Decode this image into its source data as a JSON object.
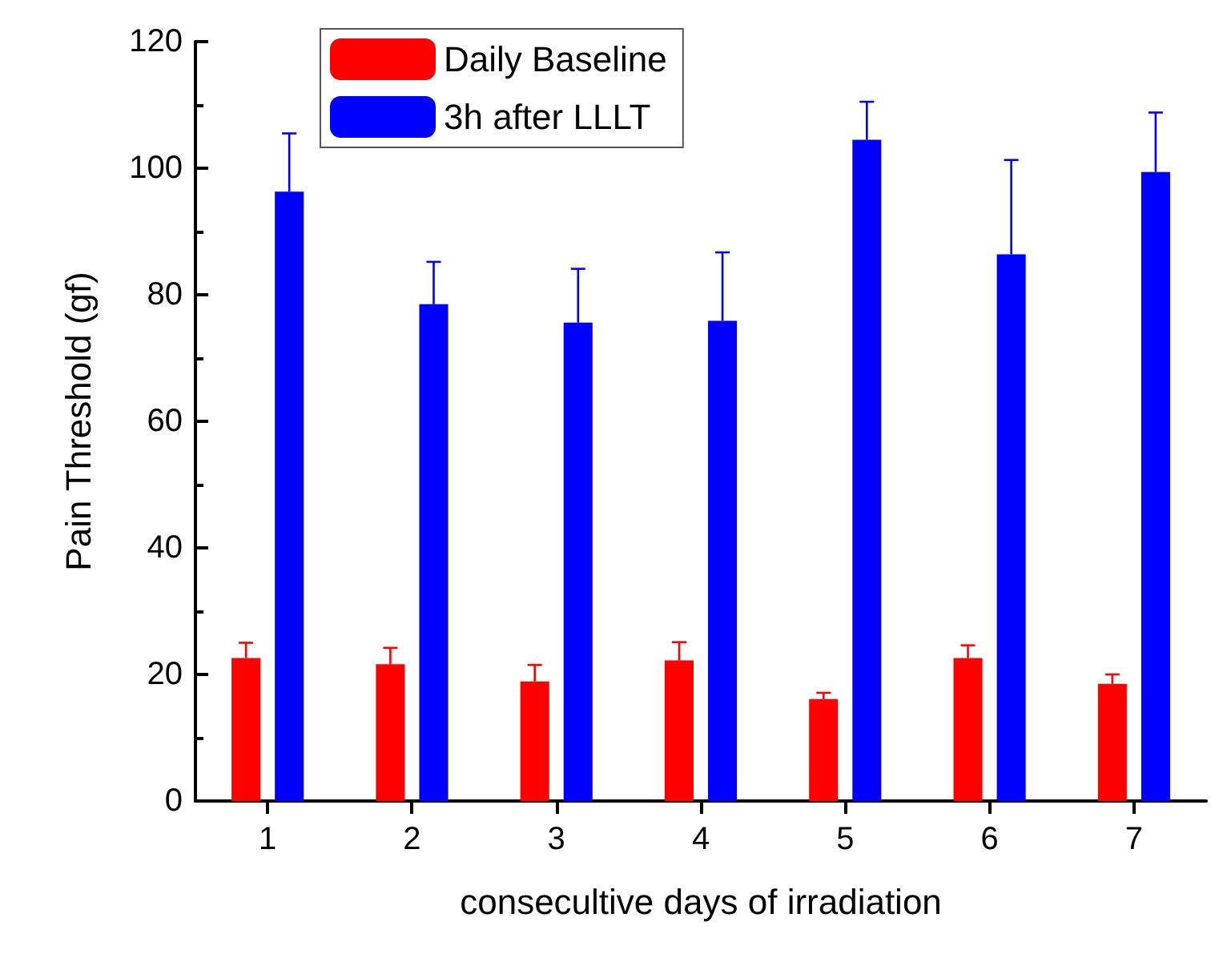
{
  "chart_data": {
    "type": "bar",
    "xlabel": "consecultive days of irradiation",
    "ylabel": "Pain Threshold (gf)",
    "categories": [
      "1",
      "2",
      "3",
      "4",
      "5",
      "6",
      "7"
    ],
    "series": [
      {
        "name": "Daily Baseline",
        "color": "#ff0000",
        "values": [
          22.6,
          21.6,
          18.9,
          22.2,
          16.1,
          22.6,
          18.5
        ],
        "errors": [
          [
            22.6,
            25.0
          ],
          [
            21.6,
            24.2
          ],
          [
            18.9,
            21.5
          ],
          [
            22.2,
            25.1
          ],
          [
            16.1,
            17.1
          ],
          [
            22.6,
            24.6
          ],
          [
            18.5,
            20.0
          ]
        ]
      },
      {
        "name": "3h after LLLT",
        "color": "#0000ff",
        "values": [
          96.3,
          78.5,
          75.6,
          75.9,
          104.5,
          86.4,
          99.4
        ],
        "errors": [
          [
            96.3,
            105.5
          ],
          [
            78.5,
            85.2
          ],
          [
            75.6,
            84.1
          ],
          [
            75.9,
            86.7
          ],
          [
            104.5,
            110.5
          ],
          [
            86.4,
            101.3
          ],
          [
            99.4,
            108.8
          ]
        ]
      }
    ],
    "ylim": [
      0,
      120
    ],
    "yticks": [
      0,
      20,
      40,
      60,
      80,
      100,
      120
    ],
    "grid": false,
    "legend": "top left"
  }
}
